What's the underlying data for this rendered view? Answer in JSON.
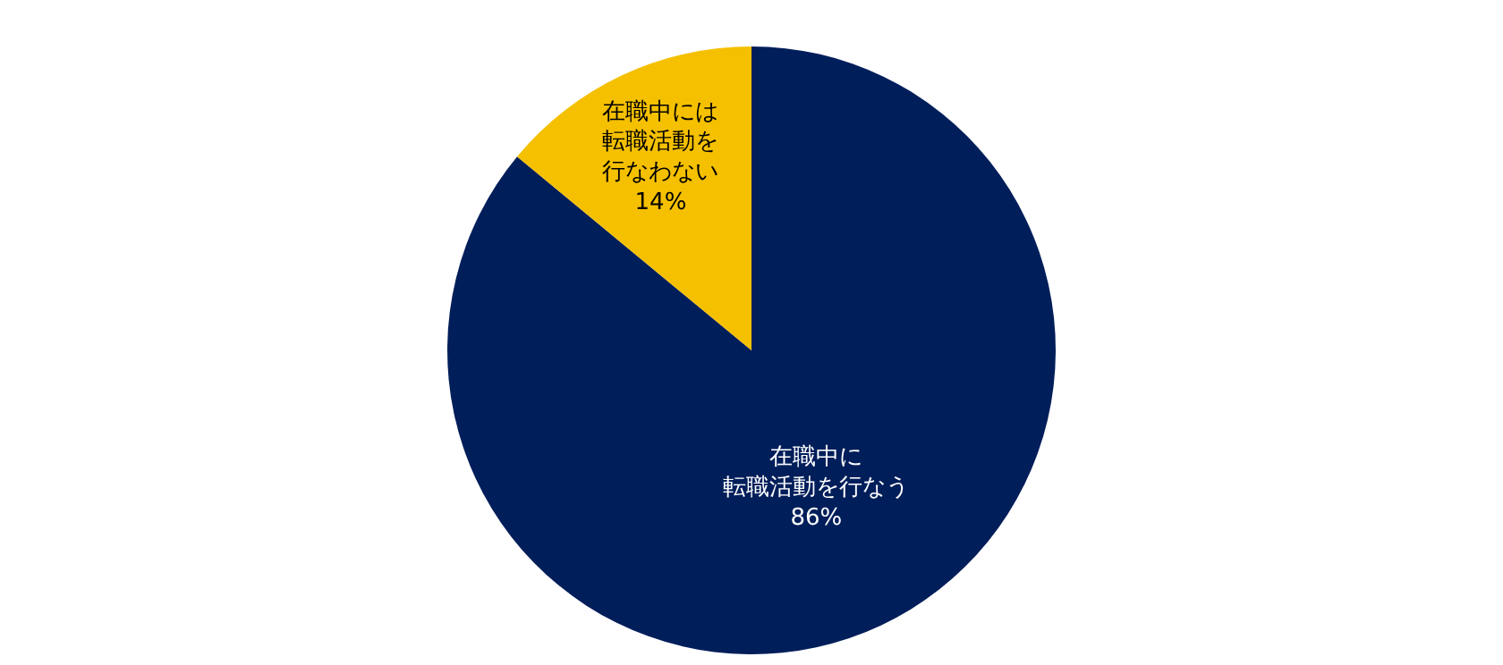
{
  "chart_data": {
    "type": "pie",
    "categories": [
      "在職中に転職活動を行なう",
      "在職中には転職活動を行なわない"
    ],
    "values": [
      86,
      14
    ],
    "colors": [
      "#001e5a",
      "#f5c000"
    ],
    "value_labels": [
      "86%",
      "14%"
    ],
    "legend": false
  }
}
